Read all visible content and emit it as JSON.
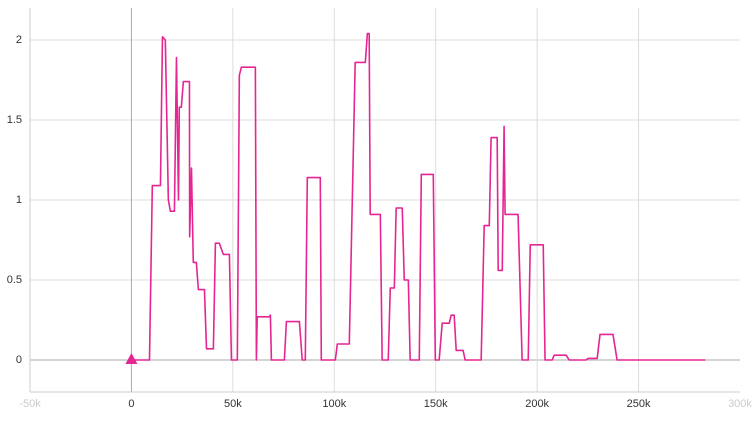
{
  "chart_data": {
    "type": "line",
    "x": [
      0,
      8900,
      10300,
      14300,
      15300,
      16700,
      18200,
      19200,
      21200,
      22200,
      23200,
      23600,
      24600,
      25600,
      28600,
      28700,
      29600,
      30500,
      32000,
      33000,
      36000,
      37000,
      40400,
      41400,
      43300,
      45300,
      48300,
      49300,
      52200,
      53200,
      54200,
      61100,
      61600,
      62000,
      68000,
      68500,
      69000,
      75400,
      76400,
      82800,
      84200,
      85700,
      86700,
      93100,
      93600,
      100500,
      101500,
      107400,
      110300,
      115300,
      116300,
      117200,
      117700,
      122700,
      123600,
      126600,
      127600,
      129600,
      130500,
      133500,
      134500,
      136500,
      137400,
      141900,
      142900,
      148800,
      149800,
      151700,
      153200,
      156700,
      157600,
      159100,
      160100,
      163500,
      164500,
      172400,
      173900,
      176400,
      177300,
      180300,
      180800,
      182800,
      183700,
      184200,
      190600,
      192600,
      195600,
      196600,
      203000,
      203900,
      207400,
      208400,
      214300,
      215800,
      224100,
      225100,
      229600,
      231000,
      237400,
      239400,
      282800
    ],
    "series": [
      {
        "color": "#e52592",
        "values": [
          0,
          0,
          1.09,
          1.09,
          2.02,
          2.0,
          1.0,
          0.93,
          0.93,
          1.89,
          1.0,
          1.58,
          1.58,
          1.74,
          1.74,
          0.77,
          1.2,
          0.61,
          0.61,
          0.44,
          0.44,
          0.07,
          0.07,
          0.73,
          0.73,
          0.66,
          0.66,
          0,
          0,
          1.78,
          1.83,
          1.83,
          0,
          0.27,
          0.27,
          0.28,
          0,
          0,
          0.24,
          0.24,
          0,
          0,
          1.14,
          1.14,
          0,
          0,
          0.1,
          0.1,
          1.86,
          1.86,
          2.04,
          2.04,
          0.91,
          0.91,
          0,
          0,
          0.45,
          0.45,
          0.95,
          0.95,
          0.5,
          0.5,
          0,
          0,
          1.16,
          1.16,
          0,
          0,
          0.23,
          0.23,
          0.28,
          0.28,
          0.06,
          0.06,
          0,
          0,
          0.84,
          0.84,
          1.39,
          1.39,
          0.56,
          0.56,
          1.46,
          0.91,
          0.91,
          0,
          0,
          0.72,
          0.72,
          0,
          0,
          0.03,
          0.03,
          0,
          0,
          0.01,
          0.01,
          0.16,
          0.16,
          0,
          0
        ]
      }
    ],
    "xlim": [
      -50000,
      300000
    ],
    "ylim": [
      -0.2,
      2.2
    ],
    "xticks": [
      {
        "value": -50000,
        "label": "-50k"
      },
      0,
      {
        "value": 50000,
        "label": "50k"
      },
      {
        "value": 100000,
        "label": "100k"
      },
      {
        "value": 150000,
        "label": "150k"
      },
      {
        "value": 200000,
        "label": "200k"
      },
      {
        "value": 250000,
        "label": "250k"
      },
      {
        "value": 300000,
        "label": "300k"
      }
    ],
    "yticks": [
      0,
      0.5,
      1,
      1.5,
      2
    ],
    "grid": true
  }
}
